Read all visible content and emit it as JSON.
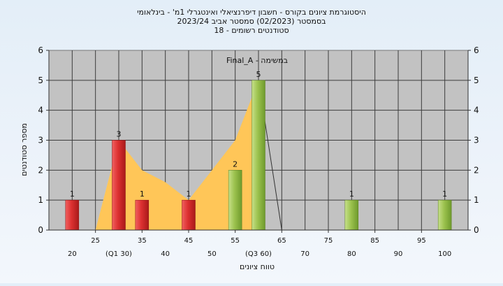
{
  "chart_data": {
    "type": "bar",
    "title_lines": [
      "היסטוגרמת ציונים בקורס - חשבון דיפרנציאלי ואינטגרלי 1מ' - בינלאומי",
      "בסמסטר  (02/2023)  סמסטר אביב 2023/24",
      "סטודנטים רשומים - 18"
    ],
    "subtitle": "Final_A - במשימה",
    "xlabel": "טווח ציונים",
    "ylabel": "מספר סטודנטים",
    "ylim": [
      0,
      6
    ],
    "yticks": [
      "0",
      "1",
      "2",
      "3",
      "4",
      "5",
      "6"
    ],
    "xlim": [
      15,
      105
    ],
    "xticks_upper": [
      {
        "x": 25,
        "label": "25"
      },
      {
        "x": 35,
        "label": "35"
      },
      {
        "x": 45,
        "label": "45"
      },
      {
        "x": 55,
        "label": "55"
      },
      {
        "x": 65,
        "label": "65"
      },
      {
        "x": 75,
        "label": "75"
      },
      {
        "x": 85,
        "label": "85"
      },
      {
        "x": 95,
        "label": "95"
      }
    ],
    "xticks_lower": [
      {
        "x": 20,
        "label": "20"
      },
      {
        "x": 30,
        "label": "(Q1 30)"
      },
      {
        "x": 40,
        "label": "40"
      },
      {
        "x": 50,
        "label": "50"
      },
      {
        "x": 60,
        "label": "(Q3 60)"
      },
      {
        "x": 70,
        "label": "70"
      },
      {
        "x": 80,
        "label": "80"
      },
      {
        "x": 90,
        "label": "90"
      },
      {
        "x": 100,
        "label": "100"
      }
    ],
    "bars": [
      {
        "x": 20,
        "value": 1,
        "status": "fail"
      },
      {
        "x": 30,
        "value": 3,
        "status": "fail"
      },
      {
        "x": 35,
        "value": 1,
        "status": "fail"
      },
      {
        "x": 45,
        "value": 1,
        "status": "fail"
      },
      {
        "x": 55,
        "value": 2,
        "status": "pass"
      },
      {
        "x": 60,
        "value": 5,
        "status": "pass"
      },
      {
        "x": 80,
        "value": 1,
        "status": "pass"
      },
      {
        "x": 100,
        "value": 1,
        "status": "pass"
      }
    ],
    "area": [
      {
        "x": 25,
        "y": 0
      },
      {
        "x": 30,
        "y": 3
      },
      {
        "x": 35,
        "y": 2
      },
      {
        "x": 40,
        "y": 1.6
      },
      {
        "x": 45,
        "y": 1
      },
      {
        "x": 50,
        "y": 2
      },
      {
        "x": 55,
        "y": 3
      },
      {
        "x": 60,
        "y": 5
      },
      {
        "x": 65,
        "y": 0
      }
    ],
    "colors": {
      "fail": "#dc3030",
      "pass": "#9cc24e",
      "area": "#ffc658",
      "plot_background": "#c2c2c2",
      "grid": "#3c3c3c"
    },
    "grid": true
  }
}
